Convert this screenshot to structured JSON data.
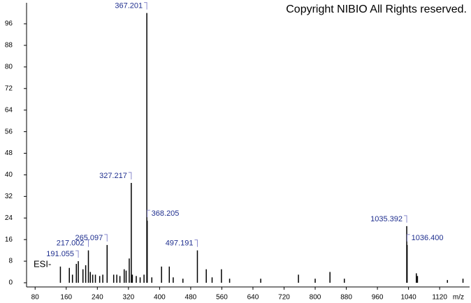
{
  "chart_data": {
    "type": "stem",
    "title": "Copyright NIBIO All Rights reserved.",
    "annotation": "ESI-",
    "x_label": "m/z",
    "xlim": [
      58,
      1197
    ],
    "ylim": [
      0,
      103
    ],
    "xticks": [
      80,
      160,
      240,
      320,
      400,
      480,
      560,
      640,
      720,
      800,
      880,
      960,
      1040,
      1120
    ],
    "yticks": [
      0,
      8,
      16,
      24,
      32,
      40,
      48,
      56,
      64,
      72,
      80,
      88,
      96
    ],
    "series": [
      {
        "color": "#000000",
        "label_color": "#1f2f8f",
        "labeled": true,
        "x": [
          191.055,
          217.002,
          265.097,
          327.217,
          367.201,
          368.205,
          497.191,
          1035.392,
          1036.4
        ],
        "x_labels": [
          "191.055",
          "217.002",
          "265.097",
          "327.217",
          "367.201",
          "368.205",
          "497.191",
          "1035.392",
          "1036.400"
        ],
        "values": [
          8,
          12,
          14,
          37,
          100,
          23,
          12,
          21,
          14
        ]
      },
      {
        "color": "#000000",
        "labeled": false,
        "x": [
          145,
          168,
          176,
          186,
          203,
          210,
          222,
          228,
          235,
          246,
          254,
          282,
          290,
          298,
          309,
          314,
          322,
          330,
          340,
          350,
          360,
          380,
          405,
          425,
          435,
          460,
          520,
          535,
          559,
          580,
          660,
          757,
          800,
          838,
          875,
          1060,
          1063,
          1140,
          1180
        ],
        "values": [
          6,
          5.5,
          3,
          7,
          5,
          6.5,
          4,
          3,
          3,
          2.5,
          3,
          3,
          3,
          2.5,
          5,
          4.5,
          9,
          3,
          2.5,
          2,
          3,
          2,
          6,
          6,
          2,
          1.5,
          5,
          2,
          5,
          1.5,
          1.5,
          3,
          1.5,
          4,
          1.5,
          3.5,
          2.5,
          1,
          1.5
        ]
      }
    ]
  }
}
